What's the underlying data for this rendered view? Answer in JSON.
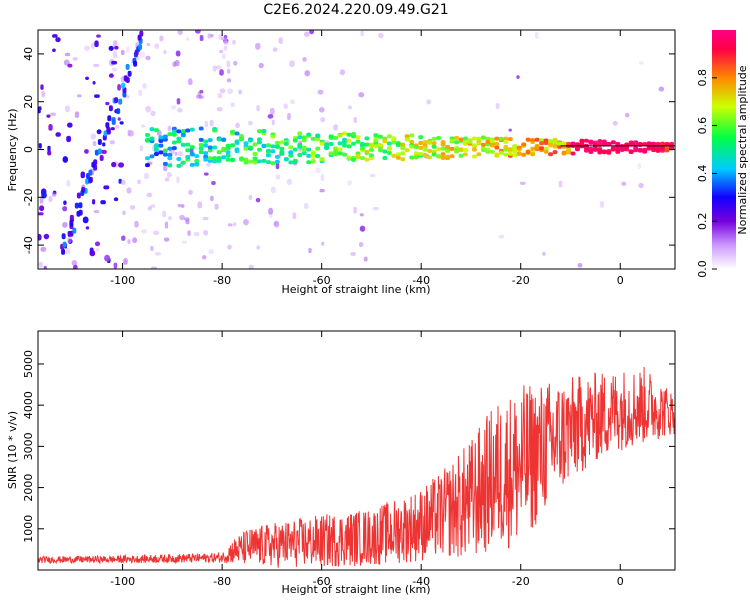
{
  "title": "C2E6.2024.220.09.49.G21",
  "chart_data": [
    {
      "type": "heatmap",
      "xlabel": "Height of straight line (km)",
      "ylabel": "Frequency (Hz)",
      "xlim": [
        -117,
        11
      ],
      "ylim": [
        -50,
        50
      ],
      "x_ticks": [
        "-100",
        "-80",
        "-60",
        "-40",
        "-20",
        "0"
      ],
      "y_ticks": [
        "-40",
        "-20",
        "0",
        "20",
        "40"
      ],
      "colorbar": {
        "label": "Normalized spectral amplitude",
        "range": [
          0,
          1
        ],
        "ticks": [
          "0.0",
          "0.2",
          "0.4",
          "0.6",
          "0.8"
        ],
        "colors": [
          "#ffffff",
          "#cc99ff",
          "#7700dd",
          "#1100ff",
          "#00ccff",
          "#00ff44",
          "#ccff00",
          "#ff8800",
          "#ff0044",
          "#ff0088"
        ]
      },
      "features": {
        "main_line": {
          "frequency_hz": 0,
          "x_start": -95,
          "x_end": 11
        },
        "diagonal_trace": {
          "x_start": -112,
          "y_start": -42,
          "x_end": -96,
          "y_end": 48
        },
        "peak_amplitude_region_x": [
          -10,
          8
        ]
      }
    },
    {
      "type": "line",
      "xlabel": "Height of straight line (km)",
      "ylabel": "SNR (10 * v/v)",
      "xlim": [
        -117,
        11
      ],
      "ylim": [
        0,
        5800
      ],
      "x_ticks": [
        "-100",
        "-80",
        "-60",
        "-40",
        "-20",
        "0"
      ],
      "y_ticks": [
        "1000",
        "2000",
        "3000",
        "4000",
        "5000"
      ],
      "series": [
        {
          "color": "#ee3333",
          "envelope_x": [
            -117,
            -100,
            -80,
            -78,
            -75,
            -70,
            -60,
            -50,
            -40,
            -35,
            -30,
            -25,
            -20,
            -15,
            -10,
            -5,
            0,
            5,
            11
          ],
          "envelope_mean": [
            250,
            260,
            300,
            450,
            550,
            600,
            700,
            800,
            1100,
            1400,
            1700,
            2300,
            2500,
            3000,
            3400,
            3700,
            3900,
            4000,
            3800
          ],
          "envelope_amp": [
            80,
            90,
            120,
            300,
            450,
            550,
            650,
            700,
            900,
            1100,
            1500,
            1800,
            2000,
            1600,
            1300,
            1100,
            1000,
            950,
            500
          ]
        }
      ]
    }
  ]
}
